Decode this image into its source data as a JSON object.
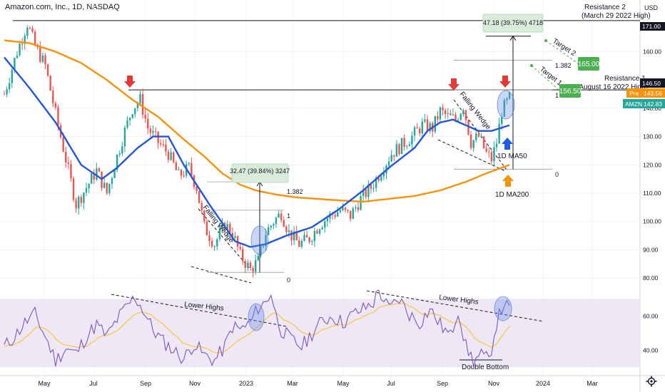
{
  "header": {
    "title": "Amazon.com, Inc., 1D, NASDAQ",
    "currency": "USD"
  },
  "colors": {
    "price_up": "#26a69a",
    "price_down": "#ef5350",
    "ma50": "#2457d6",
    "ma200": "#f5930b",
    "rsi": "#7e57c2",
    "rsi_ma": "#f5c842",
    "rsi_band": "#ede7f6",
    "green_box": "#4caf50",
    "red_arrow": "#e53935",
    "blue_arrow": "#1e5eea",
    "orange_arrow": "#f5930b"
  },
  "chart_data": [
    {
      "type": "candlestick",
      "title": "Amazon.com, Inc., 1D, NASDAQ",
      "x_ticks": [
        "May",
        "Jul",
        "Sep",
        "Nov",
        "2023",
        "Mar",
        "May",
        "Jul",
        "Sep",
        "Nov",
        "2024",
        "Mar"
      ],
      "y_ticks": [
        80.0,
        90.0,
        100.0,
        110.0,
        120.0,
        130.0,
        140.0,
        160.0
      ],
      "ylim": [
        75,
        176
      ],
      "price_path": [
        [
          0,
          145
        ],
        [
          5,
          160
        ],
        [
          9,
          170
        ],
        [
          12,
          162
        ],
        [
          16,
          155
        ],
        [
          20,
          138
        ],
        [
          24,
          122
        ],
        [
          28,
          106
        ],
        [
          32,
          112
        ],
        [
          36,
          118
        ],
        [
          40,
          110
        ],
        [
          43,
          120
        ],
        [
          47,
          132
        ],
        [
          50,
          140
        ],
        [
          53,
          143
        ],
        [
          56,
          133
        ],
        [
          60,
          128
        ],
        [
          64,
          124
        ],
        [
          68,
          116
        ],
        [
          72,
          119
        ],
        [
          75,
          112
        ],
        [
          78,
          98
        ],
        [
          82,
          92
        ],
        [
          86,
          99
        ],
        [
          89,
          96
        ],
        [
          92,
          88
        ],
        [
          96,
          83
        ],
        [
          99,
          86
        ],
        [
          102,
          96
        ],
        [
          105,
          100
        ],
        [
          108,
          103
        ],
        [
          111,
          96
        ],
        [
          115,
          92
        ],
        [
          119,
          94
        ],
        [
          123,
          99
        ],
        [
          127,
          102
        ],
        [
          131,
          104
        ],
        [
          135,
          102
        ],
        [
          139,
          108
        ],
        [
          143,
          112
        ],
        [
          147,
          118
        ],
        [
          151,
          124
        ],
        [
          155,
          127
        ],
        [
          159,
          130
        ],
        [
          163,
          134
        ],
        [
          167,
          133
        ],
        [
          170,
          139
        ],
        [
          173,
          137
        ],
        [
          176,
          136
        ],
        [
          179,
          141
        ],
        [
          182,
          128
        ],
        [
          185,
          130
        ],
        [
          188,
          124
        ],
        [
          190,
          122
        ],
        [
          192,
          128
        ],
        [
          194,
          139
        ],
        [
          196,
          142
        ],
        [
          197,
          143.56
        ]
      ],
      "candles_from_date": "early April 2022",
      "moving_averages": [
        {
          "name": "1D MA50",
          "values": [
            [
              0,
              158
            ],
            [
              10,
              147
            ],
            [
              20,
              135
            ],
            [
              30,
              120
            ],
            [
              38,
              115
            ],
            [
              44,
              119
            ],
            [
              52,
              126
            ],
            [
              58,
              130
            ],
            [
              64,
              130
            ],
            [
              70,
              120
            ],
            [
              80,
              106
            ],
            [
              90,
              93
            ],
            [
              96,
              91
            ],
            [
              102,
              92
            ],
            [
              110,
              95
            ],
            [
              120,
              98
            ],
            [
              130,
              104
            ],
            [
              140,
              111
            ],
            [
              150,
              119
            ],
            [
              160,
              126
            ],
            [
              165,
              132
            ],
            [
              170,
              135
            ],
            [
              175,
              136
            ],
            [
              180,
              134
            ],
            [
              185,
              132
            ],
            [
              190,
              132
            ],
            [
              197,
              134
            ]
          ]
        },
        {
          "name": "1D MA200",
          "values": [
            [
              0,
              164
            ],
            [
              10,
              163
            ],
            [
              20,
              160
            ],
            [
              30,
              156
            ],
            [
              40,
              150
            ],
            [
              50,
              143
            ],
            [
              60,
              137
            ],
            [
              70,
              129
            ],
            [
              78,
              123
            ],
            [
              85,
              117
            ],
            [
              92,
              113
            ],
            [
              98,
              111
            ],
            [
              106,
              109.5
            ],
            [
              114,
              108.5
            ],
            [
              122,
              108
            ],
            [
              130,
              107.5
            ],
            [
              140,
              107
            ],
            [
              150,
              108
            ],
            [
              160,
              109
            ],
            [
              170,
              111
            ],
            [
              180,
              114
            ],
            [
              188,
              117
            ],
            [
              197,
              120
            ]
          ]
        }
      ],
      "price_labels": [
        {
          "tag": "",
          "value": "171.00"
        },
        {
          "tag": "",
          "value": "146.50"
        },
        {
          "tag": "Pre",
          "value": "143.56"
        },
        {
          "tag": "AMZN",
          "value": "142.83"
        }
      ],
      "annotations": [
        {
          "text": "Resistance 2",
          "subtext": "(March 29 2022 High)",
          "value": 171
        },
        {
          "text": "Resistance 1",
          "subtext": "(August 16 2022 High)",
          "value": 146.5
        },
        {
          "text": "Falling Wedge"
        },
        {
          "text": "Falling Wedge"
        },
        {
          "text": "1D MA50"
        },
        {
          "text": "1D MA200"
        },
        {
          "text": "Target 1",
          "box": "156.50",
          "value": 156.5
        },
        {
          "text": "Target 2",
          "box": "165.00",
          "value": 165
        }
      ],
      "measurements": [
        {
          "text": "32.47 (39.84%) 3247"
        },
        {
          "text": "47.18 (39.75%) 4718"
        }
      ],
      "fib_labels": [
        {
          "set": "first",
          "labels": [
            "1.382",
            "1",
            "0"
          ],
          "values": [
            114,
            104,
            82
          ]
        },
        {
          "set": "second",
          "labels": [
            "1.382",
            "1",
            "0"
          ],
          "values": [
            157,
            146.5,
            118.5
          ]
        }
      ]
    },
    {
      "type": "line",
      "title": "",
      "y_ticks": [
        60.0,
        40.0
      ],
      "ylim": [
        26,
        76
      ],
      "series": [
        {
          "name": "",
          "values": [
            [
              0,
              42
            ],
            [
              4,
              48
            ],
            [
              8,
              56
            ],
            [
              12,
              61
            ],
            [
              16,
              48
            ],
            [
              20,
              34
            ],
            [
              24,
              41
            ],
            [
              28,
              38
            ],
            [
              32,
              48
            ],
            [
              36,
              55
            ],
            [
              40,
              48
            ],
            [
              44,
              58
            ],
            [
              48,
              66
            ],
            [
              51,
              71
            ],
            [
              54,
              64
            ],
            [
              58,
              52
            ],
            [
              62,
              45
            ],
            [
              66,
              40
            ],
            [
              70,
              35
            ],
            [
              74,
              44
            ],
            [
              78,
              37
            ],
            [
              82,
              34
            ],
            [
              86,
              42
            ],
            [
              89,
              54
            ],
            [
              92,
              52
            ],
            [
              96,
              56
            ],
            [
              99,
              65
            ],
            [
              102,
              68
            ],
            [
              104,
              74
            ],
            [
              106,
              60
            ],
            [
              108,
              52
            ],
            [
              112,
              46
            ],
            [
              116,
              42
            ],
            [
              120,
              50
            ],
            [
              124,
              57
            ],
            [
              128,
              60
            ],
            [
              132,
              56
            ],
            [
              136,
              61
            ],
            [
              140,
              64
            ],
            [
              144,
              68
            ],
            [
              146,
              75
            ],
            [
              150,
              64
            ],
            [
              154,
              70
            ],
            [
              158,
              61
            ],
            [
              162,
              56
            ],
            [
              166,
              64
            ],
            [
              170,
              55
            ],
            [
              174,
              48
            ],
            [
              177,
              64
            ],
            [
              180,
              42
            ],
            [
              183,
              34
            ],
            [
              186,
              37
            ],
            [
              189,
              34
            ],
            [
              192,
              56
            ],
            [
              195,
              68
            ],
            [
              197,
              63
            ]
          ]
        }
      ],
      "annotations": [
        {
          "text": "Lower Highs"
        },
        {
          "text": "Lower Highs"
        },
        {
          "text": "Double Bottom"
        }
      ]
    }
  ]
}
